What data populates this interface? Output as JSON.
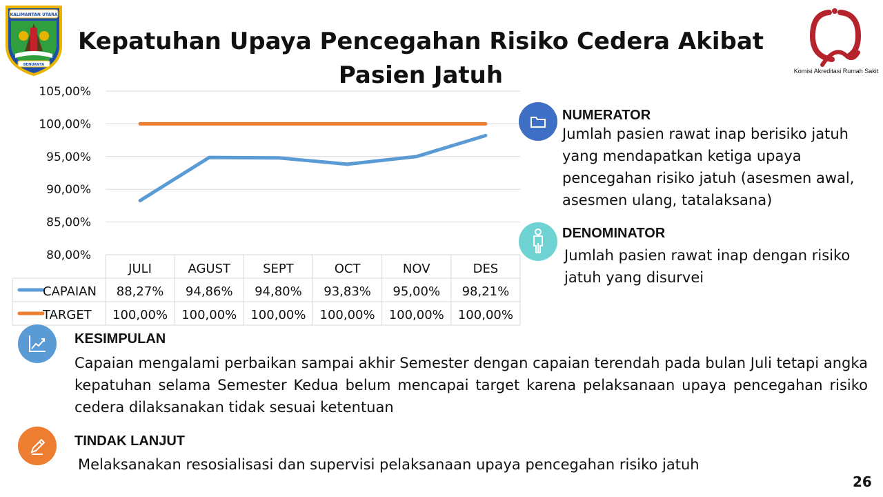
{
  "header": {
    "title_line1": "Kepatuhan Upaya Pencegahan Risiko Cedera Akibat",
    "title_line2": "Pasien Jatuh",
    "emblem_ribbon_top": "KALIMANTAN UTARA",
    "emblem_ribbon_bottom": "BENUANTA",
    "kars_label": "Komisi Akreditasi Rumah Sakit"
  },
  "chart_data": {
    "type": "line",
    "categories": [
      "JULI",
      "AGUST",
      "SEPT",
      "OCT",
      "NOV",
      "DES"
    ],
    "series": [
      {
        "name": "CAPAIAN",
        "values": [
          88.27,
          94.86,
          94.8,
          93.83,
          95.0,
          98.21
        ],
        "labels": [
          "88,27%",
          "94,86%",
          "94,80%",
          "93,83%",
          "95,00%",
          "98,21%"
        ],
        "color": "#5b9bd5"
      },
      {
        "name": "TARGET",
        "values": [
          100,
          100,
          100,
          100,
          100,
          100
        ],
        "labels": [
          "100,00%",
          "100,00%",
          "100,00%",
          "100,00%",
          "100,00%",
          "100,00%"
        ],
        "color": "#ed7d31"
      }
    ],
    "yticks": [
      "105,00%",
      "100,00%",
      "95,00%",
      "90,00%",
      "85,00%",
      "80,00%"
    ],
    "ytick_values": [
      105,
      100,
      95,
      90,
      85,
      80
    ],
    "ylim": [
      80,
      105
    ],
    "grid": true,
    "legend": "data-table"
  },
  "numerator": {
    "heading": "NUMERATOR",
    "text": "Jumlah pasien rawat inap berisiko jatuh yang mendapatkan ketiga upaya pencegahan risiko  jatuh (asesmen awal, asesmen ulang, tatalaksana)",
    "icon": "folder-icon",
    "color": "#3f6fc4"
  },
  "denominator": {
    "heading": "DENOMINATOR",
    "text": "Jumlah pasien rawat inap dengan risiko jatuh yang disurvei",
    "icon": "person-icon",
    "color": "#6fd3d3"
  },
  "kesimpulan": {
    "heading": "KESIMPULAN",
    "text": "Capaian mengalami perbaikan sampai akhir Semester dengan  capaian terendah pada bulan Juli tetapi angka kepatuhan selama Semester Kedua belum mencapai target karena pelaksanaan upaya pencegahan risiko cedera dilaksanakan tidak sesuai ketentuan",
    "icon": "trend-chart-icon",
    "color": "#5b9bd5"
  },
  "tindak_lanjut": {
    "heading": "TINDAK LANJUT",
    "text": "Melaksanakan resosialisasi dan supervisi pelaksanaan upaya pencegahan risiko jatuh",
    "icon": "pencil-icon",
    "color": "#ed7d31"
  },
  "page_number": "26"
}
